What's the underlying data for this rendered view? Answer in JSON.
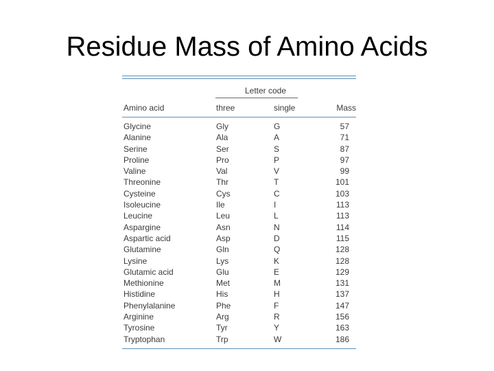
{
  "slide": {
    "title": "Residue Mass of Amino Acids"
  },
  "table": {
    "group_header": "Letter code",
    "columns": [
      "Amino acid",
      "three",
      "single",
      "Mass"
    ],
    "rows": [
      [
        "Glycine",
        "Gly",
        "G",
        "57"
      ],
      [
        "Alanine",
        "Ala",
        "A",
        "71"
      ],
      [
        "Serine",
        "Ser",
        "S",
        "87"
      ],
      [
        "Proline",
        "Pro",
        "P",
        "97"
      ],
      [
        "Valine",
        "Val",
        "V",
        "99"
      ],
      [
        "Threonine",
        "Thr",
        "T",
        "101"
      ],
      [
        "Cysteine",
        "Cys",
        "C",
        "103"
      ],
      [
        "Isoleucine",
        "Ile",
        "I",
        "113"
      ],
      [
        "Leucine",
        "Leu",
        "L",
        "113"
      ],
      [
        "Aspargine",
        "Asn",
        "N",
        "114"
      ],
      [
        "Aspartic acid",
        "Asp",
        "D",
        "115"
      ],
      [
        "Glutamine",
        "Gln",
        "Q",
        "128"
      ],
      [
        "Lysine",
        "Lys",
        "K",
        "128"
      ],
      [
        "Glutamic acid",
        "Glu",
        "E",
        "129"
      ],
      [
        "Methionine",
        "Met",
        "M",
        "131"
      ],
      [
        "Histidine",
        "His",
        "H",
        "137"
      ],
      [
        "Phenylalanine",
        "Phe",
        "F",
        "147"
      ],
      [
        "Arginine",
        "Arg",
        "R",
        "156"
      ],
      [
        "Tyrosine",
        "Tyr",
        "Y",
        "163"
      ],
      [
        "Tryptophan",
        "Trp",
        "W",
        "186"
      ]
    ]
  }
}
